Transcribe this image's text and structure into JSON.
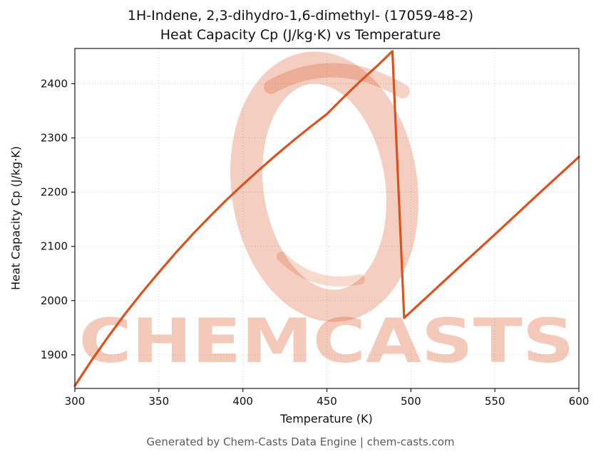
{
  "chart_data": {
    "type": "line",
    "title_line1": "1H-Indene, 2,3-dihydro-1,6-dimethyl- (17059-48-2)",
    "title_line2": "Heat Capacity Cp (J/kg·K) vs Temperature",
    "xlabel": "Temperature (K)",
    "ylabel": "Heat Capacity Cp (J/kg·K)",
    "xlim": [
      300,
      600
    ],
    "ylim": [
      1838,
      2465
    ],
    "xticks": [
      300,
      350,
      400,
      450,
      500,
      550,
      600
    ],
    "yticks": [
      1900,
      2000,
      2100,
      2200,
      2300,
      2400
    ],
    "grid": true,
    "legend": "none",
    "line_color": "#d9531f",
    "series": [
      {
        "name": "Heat Capacity Cp",
        "points": [
          [
            300,
            1843
          ],
          [
            310,
            1890
          ],
          [
            320,
            1934
          ],
          [
            330,
            1976
          ],
          [
            340,
            2015
          ],
          [
            350,
            2052
          ],
          [
            360,
            2088
          ],
          [
            370,
            2122
          ],
          [
            380,
            2154
          ],
          [
            390,
            2185
          ],
          [
            400,
            2214
          ],
          [
            410,
            2242
          ],
          [
            420,
            2269
          ],
          [
            430,
            2295
          ],
          [
            440,
            2320
          ],
          [
            450,
            2344
          ],
          [
            460,
            2375
          ],
          [
            470,
            2405
          ],
          [
            480,
            2433
          ],
          [
            489,
            2460
          ],
          [
            496,
            1968
          ],
          [
            510,
            2008
          ],
          [
            525,
            2051
          ],
          [
            550,
            2122
          ],
          [
            575,
            2194
          ],
          [
            600,
            2265
          ]
        ]
      }
    ]
  },
  "watermark": {
    "text": "CHEMCASTS",
    "color": "#d9531f"
  },
  "footer": {
    "text": "Generated by Chem-Casts Data Engine | chem-casts.com"
  }
}
